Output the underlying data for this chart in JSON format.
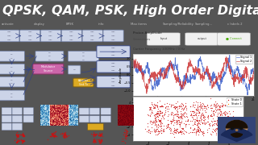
{
  "title": "QPSK, QAM, PSK, High Order Digital Modulation",
  "title_color": "#ffffff",
  "title_bg_color": "#111111",
  "title_fontsize": 11.5,
  "bg_color": "#888888",
  "left_panel_bg": "#dde4ee",
  "right_panel_bg": "#e8e8e8",
  "waveform_color1": "#4466cc",
  "waveform_color2": "#cc3333",
  "constellation_color": "#cc1111",
  "constellation_color2": "#ff8800",
  "node_color": "#ccd4e8",
  "node_border": "#7080a8",
  "node_border_dark": "#334488",
  "pink_block_color": "#cc66aa",
  "yellow_block_color": "#ddaa22",
  "toolbar_bg": "#444444",
  "toolbar_text": "#bbbbbb",
  "bottom_strip_bg": "#bbbbcc",
  "mini_flowgraph_bg": "#dde4ee",
  "mini_spectrum_bg": "#e0ddf0",
  "mini_heatmap_bg": "#cc2222",
  "avatar_bg": "#223366",
  "signal1_label": "Signal 1",
  "signal2_label": "Signal 2",
  "state0_label": "State 0",
  "state1_label": "State 1"
}
